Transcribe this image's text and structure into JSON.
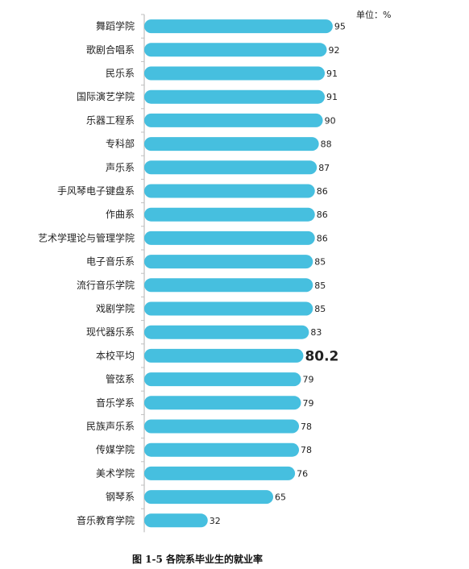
{
  "unit_label": "单位：%",
  "caption": "图 1-5  各院系毕业生的就业率",
  "colors": {
    "bar": "#46BFDF",
    "axis": "#bfbfbf",
    "text": "#222222"
  },
  "chart_data": {
    "type": "bar",
    "orientation": "horizontal",
    "title": "",
    "xlabel": "",
    "ylabel": "",
    "xlim": [
      0,
      100
    ],
    "grid": false,
    "categories": [
      "舞蹈学院",
      "歌剧合唱系",
      "民乐系",
      "国际演艺学院",
      "乐器工程系",
      "专科部",
      "声乐系",
      "手风琴电子键盘系",
      "作曲系",
      "艺术学理论与管理学院",
      "电子音乐系",
      "流行音乐学院",
      "戏剧学院",
      "现代器乐系",
      "本校平均",
      "管弦系",
      "音乐学系",
      "民族声乐系",
      "传媒学院",
      "美术学院",
      "钢琴系",
      "音乐教育学院"
    ],
    "values": [
      95,
      92,
      91,
      91,
      90,
      88,
      87,
      86,
      86,
      86,
      85,
      85,
      85,
      83,
      80.2,
      79,
      79,
      78,
      78,
      76,
      65,
      32
    ],
    "highlight": "本校平均"
  }
}
